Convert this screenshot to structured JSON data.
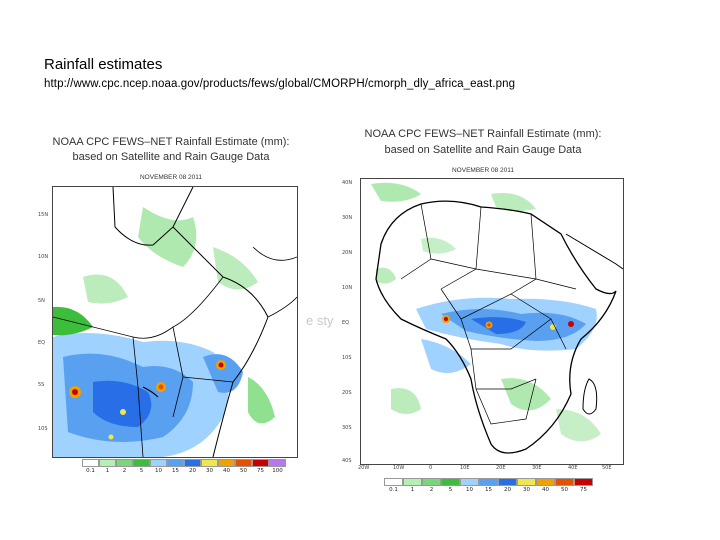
{
  "slide": {
    "title": "Rainfall estimates",
    "url": "http://www.cpc.ncep.noaa.gov/products/fews/global/CMORPH/cmorph_dly_africa_east.png",
    "ghost_text": "e sty"
  },
  "map_left": {
    "header_line1": "NOAA CPC FEWS–NET Rainfall Estimate (mm):",
    "header_line2": "based on Satellite and Rain Gauge Data",
    "date": "NOVEMBER 08 2011",
    "lat_ticks": [
      "15N",
      "10N",
      "5N",
      "EQ",
      "5S",
      "10S"
    ],
    "legend": [
      {
        "label": "0.1",
        "color": "#ffffff"
      },
      {
        "label": "1",
        "color": "#b4f0b4"
      },
      {
        "label": "2",
        "color": "#78d778"
      },
      {
        "label": "5",
        "color": "#3cbe3c"
      },
      {
        "label": "10",
        "color": "#a0d2ff"
      },
      {
        "label": "15",
        "color": "#5aa0f0"
      },
      {
        "label": "20",
        "color": "#286ee6"
      },
      {
        "label": "30",
        "color": "#f0e650"
      },
      {
        "label": "40",
        "color": "#f0a000"
      },
      {
        "label": "50",
        "color": "#e65000"
      },
      {
        "label": "75",
        "color": "#c80000"
      },
      {
        "label": "100",
        "color": "#b478f0"
      }
    ]
  },
  "map_right": {
    "header_line1": "NOAA CPC FEWS–NET Rainfall Estimate (mm):",
    "header_line2": "based on Satellite and Rain Gauge Data",
    "date": "NOVEMBER 08 2011",
    "lat_ticks": [
      "40N",
      "30N",
      "20N",
      "10N",
      "EQ",
      "10S",
      "20S",
      "30S",
      "40S"
    ],
    "lon_ticks": [
      "20W",
      "10W",
      "0",
      "10E",
      "20E",
      "30E",
      "40E",
      "50E"
    ],
    "legend": [
      {
        "label": "0.1",
        "color": "#ffffff"
      },
      {
        "label": "1",
        "color": "#b4f0b4"
      },
      {
        "label": "2",
        "color": "#78d778"
      },
      {
        "label": "5",
        "color": "#3cbe3c"
      },
      {
        "label": "10",
        "color": "#a0d2ff"
      },
      {
        "label": "15",
        "color": "#5aa0f0"
      },
      {
        "label": "20",
        "color": "#286ee6"
      },
      {
        "label": "30",
        "color": "#f0e650"
      },
      {
        "label": "40",
        "color": "#f0a000"
      },
      {
        "label": "50",
        "color": "#e65000"
      },
      {
        "label": "75",
        "color": "#c80000"
      }
    ]
  }
}
